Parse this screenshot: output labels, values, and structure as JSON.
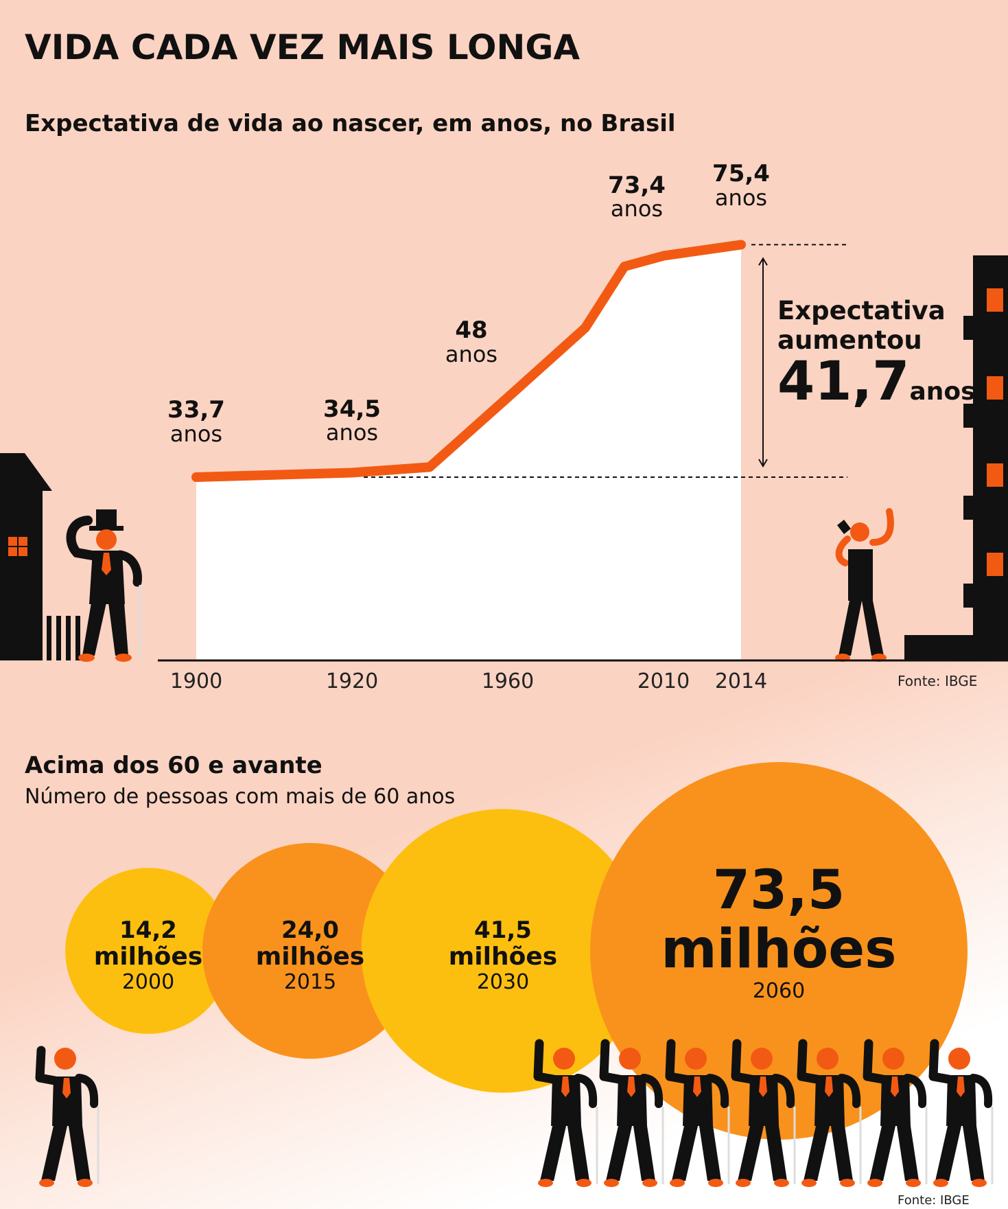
{
  "title": "VIDA CADA VEZ MAIS LONGA",
  "life_chart": {
    "subtitle": "Expectativa de vida ao nascer, em anos, no Brasil",
    "unit": "anos",
    "source": "Fonte: IBGE",
    "increase_text_line1": "Expectativa",
    "increase_text_line2": "aumentou",
    "increase_value": "41,7",
    "increase_unit": "anos"
  },
  "population_chart": {
    "title": "Acima dos 60 e avante",
    "subtitle": "Número de pessoas com mais de 60 anos",
    "unit": "milhões",
    "source": "Fonte: IBGE"
  },
  "colors": {
    "background": "#fbd3c2",
    "line": "#f25a14",
    "bubble_yellow": "#fdbf0f",
    "bubble_orange": "#f9921c",
    "figure_black": "#111111",
    "figure_orange": "#f25a14"
  },
  "chart_data": [
    {
      "type": "line",
      "title": "Expectativa de vida ao nascer, em anos, no Brasil",
      "x": [
        "1900",
        "1920",
        "1960",
        "2010",
        "2014"
      ],
      "labeled_points": [
        {
          "x": "1900",
          "y": 33.7,
          "label": "33,7"
        },
        {
          "x": "1920",
          "y": 34.5,
          "label": "34,5"
        },
        {
          "x": "1960",
          "y": 48,
          "label": "48"
        },
        {
          "x": "2010",
          "y": 73.4,
          "label": "73,4"
        },
        {
          "x": "2014",
          "y": 75.4,
          "label": "75,4"
        }
      ],
      "line_path_years": [
        1900,
        1920,
        1940,
        1960,
        1980,
        2000,
        2010,
        2014
      ],
      "line_path_values": [
        33.7,
        34.5,
        35.5,
        48,
        60.5,
        71.5,
        73.4,
        75.4
      ],
      "annotation": "Expectativa aumentou 41,7 anos",
      "grid": false,
      "source": "Fonte: IBGE"
    },
    {
      "type": "bubble",
      "title": "Acima dos 60 e avante",
      "subtitle": "Número de pessoas com mais de 60 anos",
      "categories": [
        "2000",
        "2015",
        "2030",
        "2060"
      ],
      "values": [
        14.2,
        24.0,
        41.5,
        73.5
      ],
      "labels": [
        "14,2",
        "24,0",
        "41,5",
        "73,5"
      ],
      "unit": "milhões",
      "source": "Fonte: IBGE"
    }
  ]
}
